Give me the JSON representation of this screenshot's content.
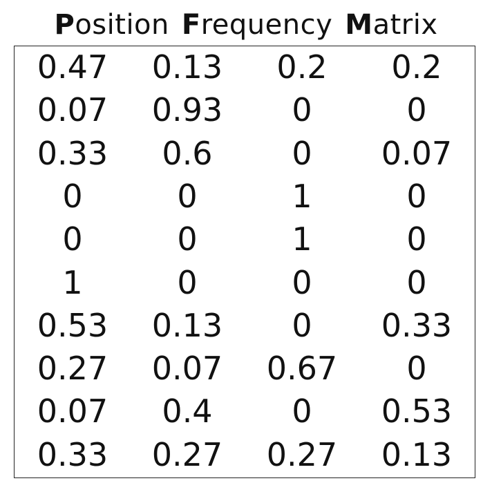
{
  "title": {
    "words": [
      {
        "initial": "P",
        "rest": "osition"
      },
      {
        "initial": "F",
        "rest": "requency"
      },
      {
        "initial": "M",
        "rest": "atrix"
      }
    ]
  },
  "matrix": [
    [
      "0.47",
      "0.13",
      "0.2",
      "0.2"
    ],
    [
      "0.07",
      "0.93",
      "0",
      "0"
    ],
    [
      "0.33",
      "0.6",
      "0",
      "0.07"
    ],
    [
      "0",
      "0",
      "1",
      "0"
    ],
    [
      "0",
      "0",
      "1",
      "0"
    ],
    [
      "1",
      "0",
      "0",
      "0"
    ],
    [
      "0.53",
      "0.13",
      "0",
      "0.33"
    ],
    [
      "0.27",
      "0.07",
      "0.67",
      "0"
    ],
    [
      "0.07",
      "0.4",
      "0",
      "0.53"
    ],
    [
      "0.33",
      "0.27",
      "0.27",
      "0.13"
    ]
  ]
}
